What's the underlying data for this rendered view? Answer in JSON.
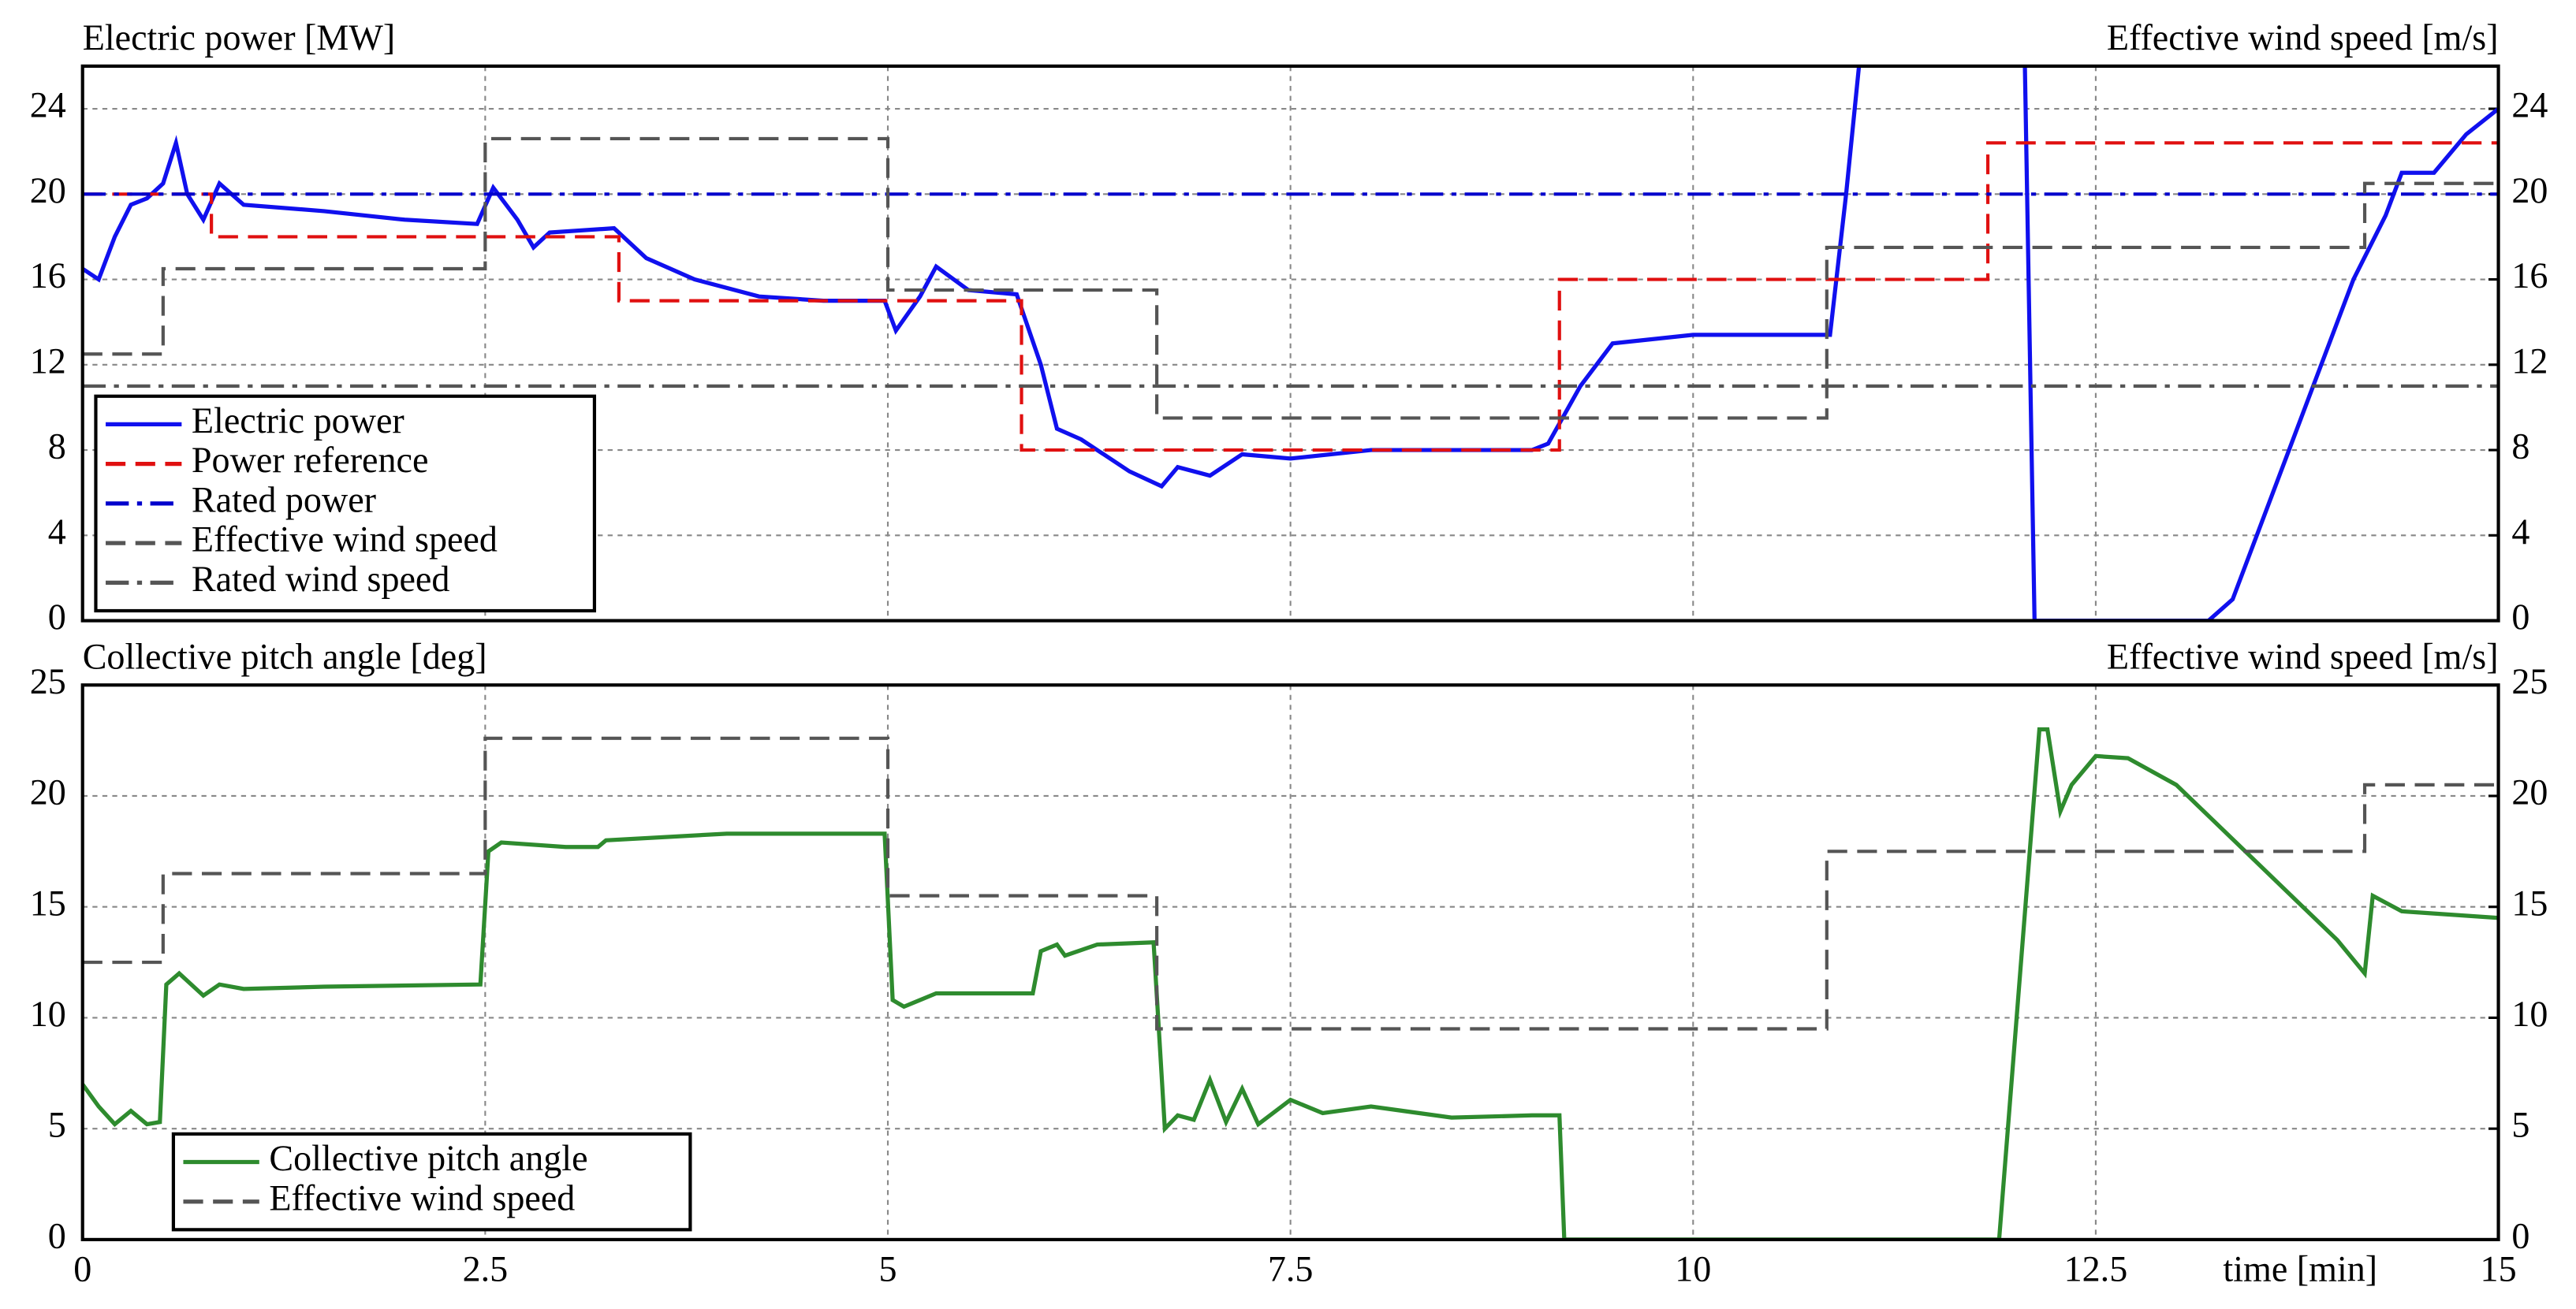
{
  "chart_data": [
    {
      "type": "line",
      "ylabel": "Electric power [MW]",
      "y2label": "Effective wind speed [m/s]",
      "xlim": [
        0,
        15
      ],
      "xticks": [
        0,
        2.5,
        5,
        7.5,
        10,
        12.5,
        15
      ],
      "ylim": [
        0,
        26
      ],
      "yticks": [
        0,
        4,
        8,
        12,
        16,
        20,
        24
      ],
      "y2lim": [
        0,
        26
      ],
      "y2ticks": [
        0,
        4,
        8,
        12,
        16,
        20,
        24
      ],
      "grid": true,
      "legend": "lower left",
      "series": [
        {
          "name": "Electric power",
          "color": "#1010ee",
          "style": "solid",
          "axis": "y",
          "x": [
            0,
            0.1,
            0.2,
            0.3,
            0.4,
            0.5,
            0.58,
            0.65,
            0.75,
            0.85,
            1,
            1.5,
            2,
            2.45,
            2.55,
            2.7,
            2.8,
            2.9,
            3.3,
            3.5,
            3.8,
            4.2,
            4.6,
            4.98,
            5.05,
            5.2,
            5.3,
            5.5,
            5.8,
            5.95,
            6.05,
            6.2,
            6.5,
            6.7,
            6.8,
            7,
            7.2,
            7.5,
            8,
            9,
            9.1,
            9.3,
            9.5,
            10,
            10.5,
            10.85,
            10.95,
            11.03,
            11.5,
            12.06,
            12.12,
            13.2,
            13.35,
            13.6,
            13.9,
            14.1,
            14.3,
            14.4,
            14.6,
            14.8,
            15
          ],
          "values": [
            16.5,
            16,
            18,
            19.5,
            19.8,
            20.5,
            22.4,
            20,
            18.8,
            20.5,
            19.5,
            19.2,
            18.8,
            18.6,
            20.3,
            18.8,
            17.5,
            18.2,
            18.4,
            17,
            16,
            15.2,
            15,
            15,
            13.6,
            15.2,
            16.6,
            15.5,
            15.3,
            12,
            9,
            8.5,
            7,
            6.3,
            7.2,
            6.8,
            7.8,
            7.6,
            8,
            8,
            8.3,
            11,
            13,
            13.4,
            13.4,
            13.4,
            20,
            26,
            null,
            26,
            0,
            0,
            1,
            6,
            12,
            16,
            19,
            21,
            21,
            22.8,
            24
          ]
        },
        {
          "name": "Power reference",
          "color": "#e01010",
          "style": "dash",
          "axis": "y",
          "x": [
            0,
            0.8,
            0.8,
            3.33,
            3.33,
            5.83,
            5.83,
            9.17,
            9.17,
            11.83,
            11.83,
            15
          ],
          "values": [
            20,
            20,
            18,
            18,
            15,
            15,
            8,
            8,
            16,
            16,
            22.4,
            22.4
          ]
        },
        {
          "name": "Rated power",
          "color": "#0000cc",
          "style": "dashdot",
          "axis": "y",
          "x": [
            0,
            15
          ],
          "values": [
            20,
            20
          ]
        },
        {
          "name": "Effective wind speed",
          "color": "#555555",
          "style": "dash",
          "axis": "y2",
          "x": [
            0,
            0.5,
            0.5,
            2.5,
            2.5,
            5,
            5,
            6.67,
            6.67,
            10.83,
            10.83,
            14.17,
            14.17,
            15
          ],
          "values": [
            12.5,
            12.5,
            16.5,
            16.5,
            22.6,
            22.6,
            15.5,
            15.5,
            9.5,
            9.5,
            17.5,
            17.5,
            20.5,
            20.5
          ]
        },
        {
          "name": "Rated wind speed",
          "color": "#555555",
          "style": "dashdot",
          "axis": "y2",
          "x": [
            0,
            15
          ],
          "values": [
            11,
            11
          ]
        }
      ]
    },
    {
      "type": "line",
      "ylabel": "Collective pitch angle [deg]",
      "y2label": "Effective wind speed [m/s]",
      "xlabel": "time [min]",
      "xlim": [
        0,
        15
      ],
      "xticks": [
        0,
        2.5,
        5,
        7.5,
        10,
        12.5,
        15
      ],
      "ylim": [
        0,
        25
      ],
      "yticks": [
        0,
        5,
        10,
        15,
        20,
        25
      ],
      "y2lim": [
        0,
        25
      ],
      "y2ticks": [
        0,
        5,
        10,
        15,
        20,
        25
      ],
      "grid": true,
      "legend": "lower left",
      "series": [
        {
          "name": "Collective pitch angle",
          "color": "#2e8b2e",
          "style": "solid",
          "axis": "y",
          "x": [
            0,
            0.1,
            0.2,
            0.3,
            0.4,
            0.48,
            0.52,
            0.6,
            0.75,
            0.85,
            1,
            1.5,
            2.47,
            2.52,
            2.6,
            3,
            3.2,
            3.25,
            4,
            4.98,
            5.03,
            5.1,
            5.3,
            5.9,
            5.95,
            6.05,
            6.1,
            6.3,
            6.65,
            6.72,
            6.8,
            6.9,
            7,
            7.1,
            7.2,
            7.3,
            7.5,
            7.7,
            8,
            8.5,
            9,
            9.17,
            9.2,
            11.9,
            12.15,
            12.2,
            12.28,
            12.35,
            12.5,
            12.7,
            13,
            13.5,
            14,
            14.17,
            14.22,
            14.4,
            15
          ],
          "values": [
            7,
            6,
            5.2,
            5.8,
            5.2,
            5.3,
            11.5,
            12,
            11,
            11.5,
            11.3,
            11.4,
            11.5,
            17.5,
            17.9,
            17.7,
            17.7,
            18,
            18.3,
            18.3,
            10.8,
            10.5,
            11.1,
            11.1,
            13,
            13.3,
            12.8,
            13.3,
            13.4,
            5,
            5.6,
            5.4,
            7.2,
            5.3,
            6.8,
            5.2,
            6.3,
            5.7,
            6,
            5.5,
            5.6,
            5.6,
            0,
            0,
            23,
            23,
            19.3,
            20.5,
            21.8,
            21.7,
            20.5,
            17,
            13.5,
            12,
            15.5,
            14.8,
            14.5
          ]
        },
        {
          "name": "Effective wind speed",
          "color": "#555555",
          "style": "dash",
          "axis": "y2",
          "x": [
            0,
            0.5,
            0.5,
            2.5,
            2.5,
            5,
            5,
            6.67,
            6.67,
            10.83,
            10.83,
            14.17,
            14.17,
            15
          ],
          "values": [
            12.5,
            12.5,
            16.5,
            16.5,
            22.6,
            22.6,
            15.5,
            15.5,
            9.5,
            9.5,
            17.5,
            17.5,
            20.5,
            20.5
          ]
        }
      ]
    }
  ]
}
